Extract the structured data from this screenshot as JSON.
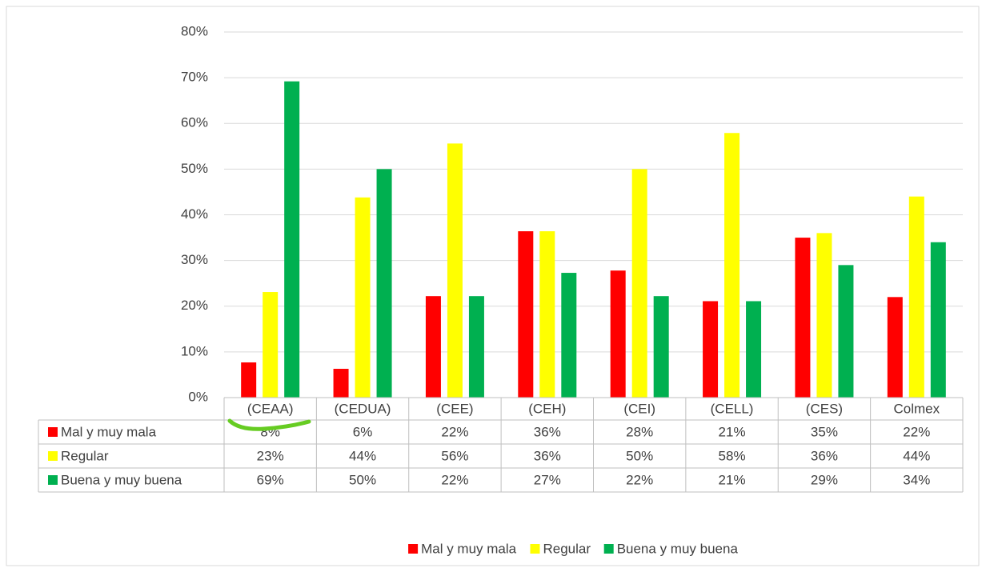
{
  "chart_data": {
    "type": "bar",
    "categories": [
      "(CEAA)",
      "(CEDUA)",
      "(CEE)",
      "(CEH)",
      "(CEI)",
      "(CELL)",
      "(CES)",
      "Colmex"
    ],
    "series": [
      {
        "name": "Mal y muy mala",
        "color": "#ff0000",
        "values": [
          7.7,
          6.3,
          22.2,
          36.4,
          27.8,
          21.1,
          35,
          22
        ],
        "value_labels": [
          "8%",
          "6%",
          "22%",
          "36%",
          "28%",
          "21%",
          "35%",
          "22%"
        ]
      },
      {
        "name": "Regular",
        "color": "#ffff00",
        "values": [
          23.1,
          43.8,
          55.6,
          36.4,
          50,
          57.9,
          36,
          44
        ],
        "value_labels": [
          "23%",
          "44%",
          "56%",
          "36%",
          "50%",
          "58%",
          "36%",
          "44%"
        ]
      },
      {
        "name": "Buena y muy buena",
        "color": "#00b050",
        "values": [
          69.2,
          50,
          22.2,
          27.3,
          22.2,
          21.1,
          29,
          34
        ],
        "value_labels": [
          "69%",
          "50%",
          "22%",
          "27%",
          "22%",
          "21%",
          "29%",
          "34%"
        ]
      }
    ],
    "ylim": [
      0,
      80
    ],
    "yticks": [
      {
        "value": 0,
        "label": "0%"
      },
      {
        "value": 10,
        "label": "10%"
      },
      {
        "value": 20,
        "label": "20%"
      },
      {
        "value": 30,
        "label": "30%"
      },
      {
        "value": 40,
        "label": "40%"
      },
      {
        "value": 50,
        "label": "50%"
      },
      {
        "value": 60,
        "label": "60%"
      },
      {
        "value": 70,
        "label": "70%"
      },
      {
        "value": 80,
        "label": "80%"
      }
    ],
    "grid": true,
    "legend": "bottom",
    "data_table": true
  }
}
